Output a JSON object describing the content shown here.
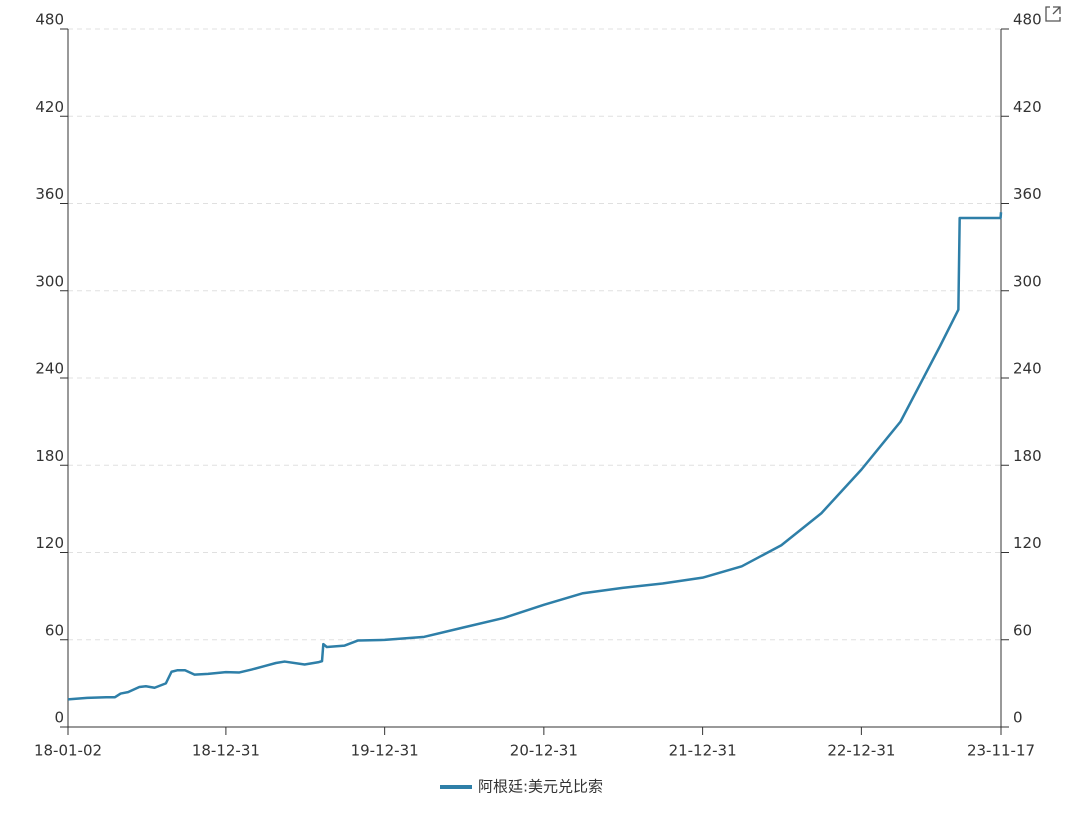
{
  "chart_data": {
    "type": "line",
    "x": [
      "18-01-02",
      "18-02-15",
      "18-03-31",
      "18-04-20",
      "18-05-03",
      "18-05-20",
      "18-06-15",
      "18-06-30",
      "18-07-20",
      "18-08-15",
      "18-08-28",
      "18-09-10",
      "18-09-28",
      "18-10-20",
      "18-11-20",
      "18-12-31",
      "19-01-31",
      "19-02-28",
      "19-03-31",
      "19-04-25",
      "19-05-15",
      "19-06-30",
      "19-07-31",
      "19-08-09",
      "19-08-12",
      "19-08-20",
      "19-09-30",
      "19-10-31",
      "19-12-31",
      "20-03-31",
      "20-06-30",
      "20-09-30",
      "20-12-31",
      "21-03-31",
      "21-06-30",
      "21-09-30",
      "21-12-31",
      "22-03-31",
      "22-06-30",
      "22-09-30",
      "22-12-31",
      "23-03-31",
      "23-06-30",
      "23-08-11",
      "23-08-14",
      "23-11-16",
      "23-11-17"
    ],
    "series": [
      {
        "name": "阿根廷:美元兑比索",
        "color": "#2e7fa8",
        "values": [
          19,
          20,
          20.5,
          20.5,
          23,
          24,
          27.5,
          28,
          27,
          30,
          38,
          39,
          39,
          36,
          36.5,
          37.7,
          37.5,
          39.5,
          42,
          44,
          45,
          43,
          44.5,
          45.3,
          57,
          55,
          56,
          59.5,
          59.9,
          62,
          68.5,
          75,
          84,
          92,
          95.7,
          98.7,
          102.7,
          110.5,
          125,
          147,
          177,
          210,
          262,
          287,
          350,
          350,
          354
        ]
      }
    ],
    "xlim": [
      "18-01-02",
      "23-11-17"
    ],
    "xticks": [
      "18-01-02",
      "18-12-31",
      "19-12-31",
      "20-12-31",
      "21-12-31",
      "22-12-31",
      "23-11-17"
    ],
    "ylim": [
      0,
      480
    ],
    "yticks": [
      0,
      60,
      120,
      180,
      240,
      300,
      360,
      420,
      480
    ],
    "y2lim": [
      0,
      480
    ],
    "y2ticks": [
      0,
      60,
      120,
      180,
      240,
      300,
      360,
      420,
      480
    ],
    "grid": true,
    "legend": "bottom"
  }
}
